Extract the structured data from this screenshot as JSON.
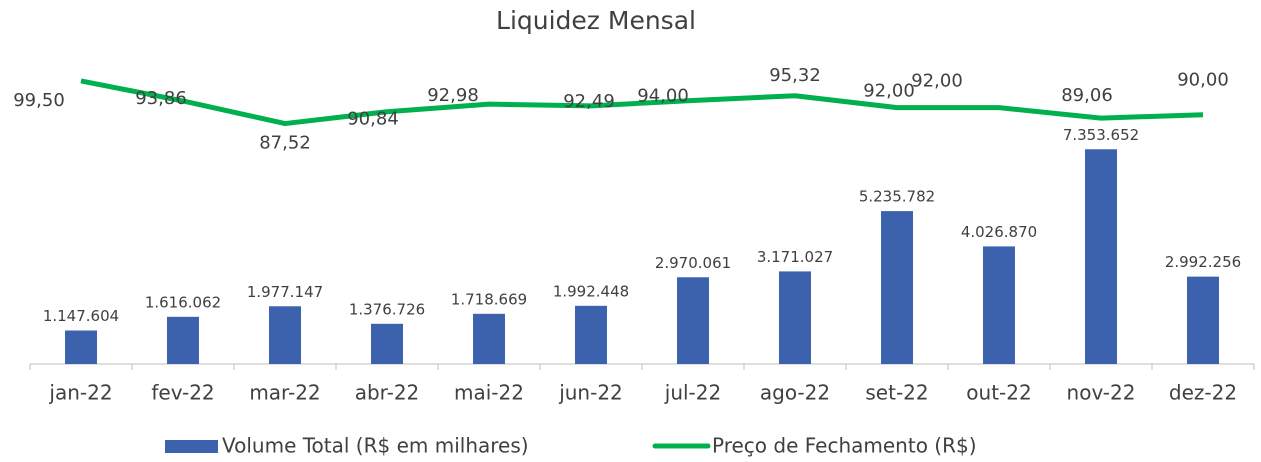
{
  "chart_data": {
    "type": "bar-line",
    "title": "Liquidez Mensal",
    "categories": [
      "jan-22",
      "fev-22",
      "mar-22",
      "abr-22",
      "mai-22",
      "jun-22",
      "jul-22",
      "ago-22",
      "set-22",
      "out-22",
      "nov-22",
      "dez-22"
    ],
    "series": [
      {
        "name": "Volume Total (R$ em milhares)",
        "type": "bar",
        "color": "#3c62ad",
        "axis": "y",
        "values": [
          1147604,
          1616062,
          1977147,
          1376726,
          1718669,
          1992448,
          2970061,
          3171027,
          5235782,
          4026870,
          7353652,
          2992256
        ],
        "value_labels": [
          "1.147.604",
          "1.616.062",
          "1.977.147",
          "1.376.726",
          "1.718.669",
          "1.992.448",
          "2.970.061",
          "3.171.027",
          "5.235.782",
          "4.026.870",
          "7.353.652",
          "2.992.256"
        ]
      },
      {
        "name": "Preço de Fechamento (R$)",
        "type": "line",
        "color": "#00b04f",
        "axis": "y2",
        "values": [
          99.5,
          93.86,
          87.52,
          90.84,
          92.98,
          92.49,
          94.0,
          95.32,
          92.0,
          92.0,
          89.06,
          90.0
        ],
        "value_labels": [
          "99,50",
          "93,86",
          "87,52",
          "90,84",
          "92,98",
          "92,49",
          "94,00",
          "95,32",
          "92,00",
          "92,00",
          "89,06",
          "90,00"
        ]
      }
    ],
    "ylim": [
      0,
      10000000
    ],
    "y2lim": [
      20,
      102
    ],
    "legend": "bottom"
  }
}
